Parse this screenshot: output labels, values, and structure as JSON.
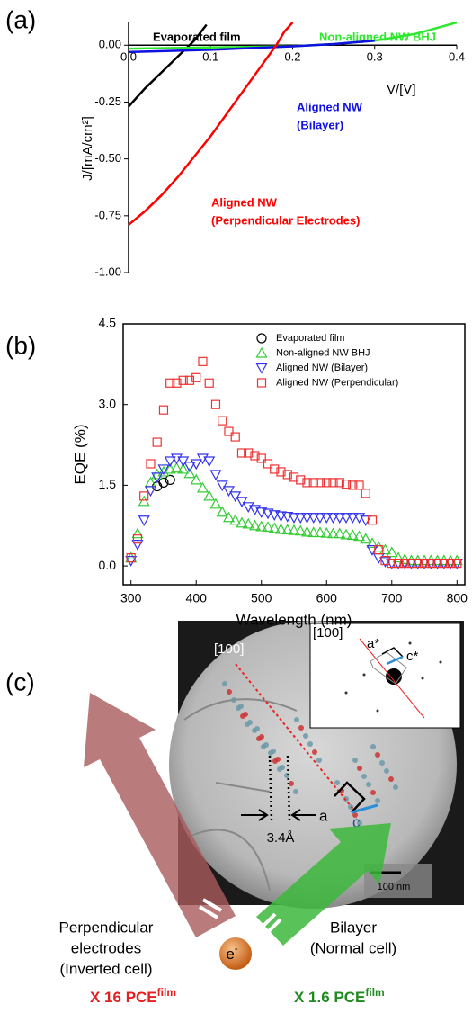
{
  "chart_data": [
    {
      "type": "line",
      "panel": "(a)",
      "xlabel": "V/[V]",
      "ylabel": "J/[mA/cm²]",
      "xlim": [
        0,
        0.4
      ],
      "ylim": [
        -1.0,
        0.1
      ],
      "xticks": [
        {
          "value": 0,
          "label": "0.0"
        },
        0.1,
        0.2,
        0.3,
        0.4
      ],
      "yticks": [
        {
          "value": 0,
          "label": "0.00"
        },
        -0.25,
        {
          "value": -0.5,
          "label": "-0.50"
        },
        -0.75,
        {
          "value": -1.0,
          "label": "-1.00"
        }
      ],
      "series": [
        {
          "label": [
            "Evaporated film"
          ],
          "color": "#000000",
          "x": [
            0,
            0.02,
            0.04,
            0.06,
            0.08,
            0.095
          ],
          "values": [
            -0.27,
            -0.19,
            -0.12,
            -0.05,
            0.02,
            0.09
          ]
        },
        {
          "label": [
            "Non-aligned NW BHJ"
          ],
          "color": "#2ee82e",
          "x": [
            0,
            0.1,
            0.2,
            0.25,
            0.3,
            0.35,
            0.38,
            0.4
          ],
          "values": [
            -0.015,
            -0.01,
            -0.005,
            0.005,
            0.02,
            0.05,
            0.08,
            0.1
          ]
        },
        {
          "label": [
            "Aligned NW",
            "(Bilayer)"
          ],
          "color": "#1010e0",
          "x": [
            0,
            0.1,
            0.2,
            0.25,
            0.3
          ],
          "values": [
            -0.03,
            -0.02,
            -0.005,
            0.005,
            0.02
          ]
        },
        {
          "label": [
            "Aligned NW",
            "(Perpendicular Electrodes)"
          ],
          "color": "#ff0000",
          "x": [
            0,
            0.02,
            0.04,
            0.06,
            0.08,
            0.1,
            0.12,
            0.14,
            0.16,
            0.18,
            0.19,
            0.2
          ],
          "values": [
            -0.79,
            -0.73,
            -0.66,
            -0.58,
            -0.49,
            -0.4,
            -0.3,
            -0.2,
            -0.1,
            0.0,
            0.06,
            0.1
          ]
        }
      ]
    },
    {
      "type": "scatter",
      "panel": "(b)",
      "xlabel": "Wavelength (nm)",
      "ylabel": "EQE (%)",
      "xlim": [
        288,
        812
      ],
      "ylim": [
        -0.35,
        4.5
      ],
      "xticks": [
        300,
        400,
        500,
        600,
        700,
        800
      ],
      "yticks": [
        {
          "value": 0,
          "label": "0.0"
        },
        1.5,
        {
          "value": 3,
          "label": "3.0"
        },
        4.5
      ],
      "x": [
        300,
        310,
        320,
        330,
        340,
        350,
        360,
        370,
        380,
        390,
        400,
        410,
        420,
        430,
        440,
        450,
        460,
        470,
        480,
        490,
        500,
        510,
        520,
        530,
        540,
        550,
        560,
        570,
        580,
        590,
        600,
        610,
        620,
        630,
        640,
        650,
        660,
        670,
        680,
        690,
        700,
        710,
        720,
        730,
        740,
        750,
        760,
        770,
        780,
        790,
        800
      ],
      "series": [
        {
          "name": "Evaporated film",
          "marker": "circle",
          "color": "#000000",
          "x": [
            340,
            350,
            360
          ],
          "values": [
            1.48,
            1.55,
            1.6
          ]
        },
        {
          "name": "Non-aligned NW BHJ",
          "marker": "triangle-up",
          "color": "#33cc33",
          "values": [
            0.15,
            0.6,
            1.2,
            1.55,
            1.7,
            1.75,
            1.8,
            1.82,
            1.8,
            1.72,
            1.6,
            1.45,
            1.3,
            1.15,
            1.0,
            0.9,
            0.85,
            0.8,
            0.78,
            0.75,
            0.73,
            0.72,
            0.7,
            0.68,
            0.67,
            0.66,
            0.65,
            0.63,
            0.62,
            0.62,
            0.61,
            0.6,
            0.6,
            0.58,
            0.57,
            0.55,
            0.5,
            0.42,
            0.35,
            0.3,
            0.25,
            0.15,
            0.12,
            0.1,
            0.1,
            0.1,
            0.1,
            0.1,
            0.1,
            0.1,
            0.1
          ]
        },
        {
          "name": "Aligned NW (Bilayer)",
          "marker": "triangle-down",
          "color": "#3333ee",
          "values": [
            0.1,
            0.4,
            0.85,
            1.4,
            1.65,
            1.8,
            1.95,
            2.0,
            1.95,
            1.85,
            1.9,
            2.0,
            1.95,
            1.7,
            1.5,
            1.4,
            1.3,
            1.2,
            1.1,
            1.05,
            1.0,
            0.98,
            0.95,
            0.93,
            0.92,
            0.9,
            0.9,
            0.9,
            0.9,
            0.9,
            0.9,
            0.9,
            0.9,
            0.9,
            0.9,
            0.9,
            0.85,
            0.3,
            0.15,
            0.08,
            0.05,
            0.05,
            0.05,
            0.05,
            0.05,
            0.05,
            0.05,
            0.05,
            0.05,
            0.05,
            0.05
          ]
        },
        {
          "name": "Aligned NW (Perpendicular)",
          "marker": "square",
          "color": "#ee3333",
          "values": [
            0.15,
            0.5,
            1.3,
            1.9,
            2.3,
            2.9,
            3.4,
            3.4,
            3.45,
            3.45,
            3.5,
            3.8,
            3.4,
            3.0,
            2.7,
            2.5,
            2.4,
            2.1,
            2.1,
            2.05,
            2.0,
            1.9,
            1.8,
            1.75,
            1.7,
            1.65,
            1.6,
            1.55,
            1.55,
            1.55,
            1.55,
            1.55,
            1.55,
            1.52,
            1.5,
            1.5,
            1.35,
            0.85,
            0.3,
            0.1,
            0.05,
            0.05,
            0.05,
            0.05,
            0.05,
            0.05,
            0.05,
            0.05,
            0.05,
            0.05,
            0.05
          ]
        }
      ]
    }
  ],
  "panel_c": {
    "label": "(c)",
    "zone_axis": "[100]",
    "inset": {
      "zone_axis": "[100]",
      "a_star": "a*",
      "c_star": "c*"
    },
    "axis_a": "a",
    "axis_c": "c",
    "spacing": "3.4Å",
    "scale_bar": "100 nm",
    "left_arrow": [
      "Perpendicular",
      "electrodes",
      "(Inverted cell)"
    ],
    "right_arrow": [
      "Bilayer",
      "(Normal cell)"
    ],
    "electron": {
      "base": "e",
      "sup": "-"
    },
    "left_gain": {
      "text": "X 16 PCE",
      "sup": "film"
    },
    "right_gain": {
      "text": "X 1.6 PCE",
      "sup": "film"
    }
  }
}
